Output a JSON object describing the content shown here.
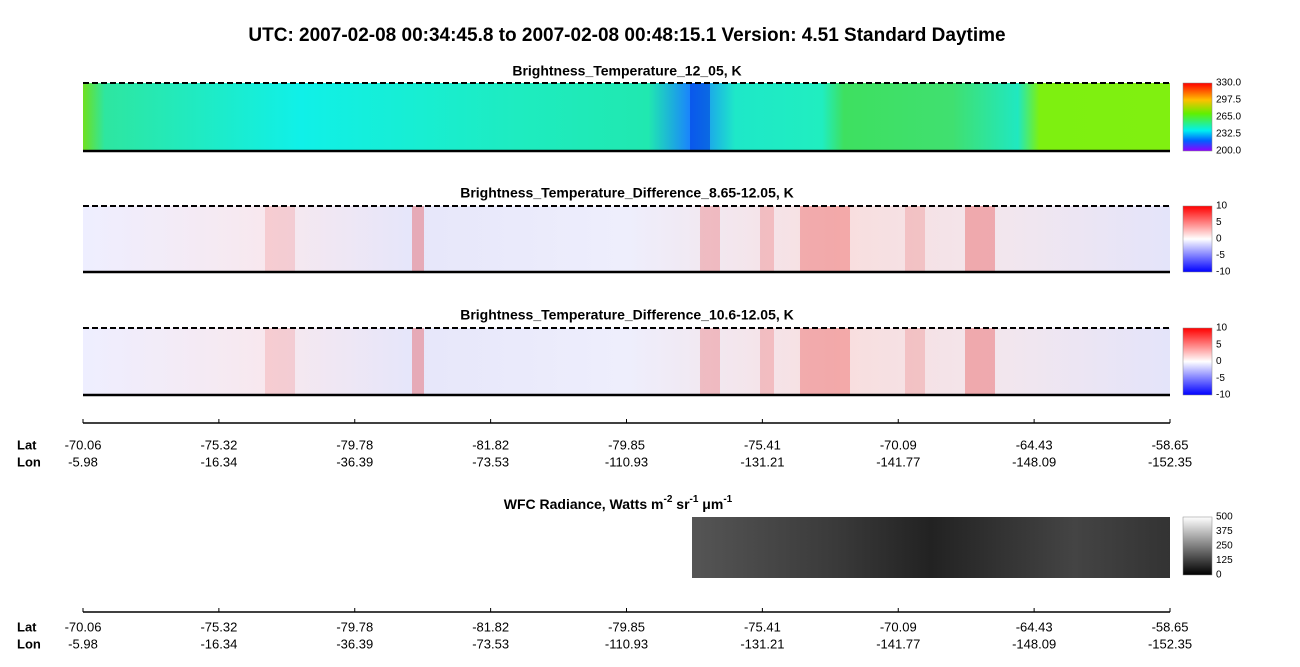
{
  "header": {
    "title": "UTC:  2007-02-08   00:34:45.8  to  2007-02-08   00:48:15.1    Version: 4.51  Standard Daytime"
  },
  "panels": [
    {
      "title": "Brightness_Temperature_12_05, K",
      "colorbar": [
        "330.0",
        "297.5",
        "265.0",
        "232.5",
        "200.0"
      ]
    },
    {
      "title": "Brightness_Temperature_Difference_8.65-12.05, K",
      "colorbar": [
        "10",
        "5",
        "0",
        "-5",
        "-10"
      ]
    },
    {
      "title": "Brightness_Temperature_Difference_10.6-12.05, K",
      "colorbar": [
        "10",
        "5",
        "0",
        "-5",
        "-10"
      ]
    }
  ],
  "axis": {
    "lat_label": "Lat",
    "lon_label": "Lon",
    "lat": [
      "-70.06",
      "-75.32",
      "-79.78",
      "-81.82",
      "-79.85",
      "-75.41",
      "-70.09",
      "-64.43",
      "-58.65"
    ],
    "lon": [
      "-5.98",
      "-16.34",
      "-36.39",
      "-73.53",
      "-110.93",
      "-131.21",
      "-141.77",
      "-148.09",
      "-152.35"
    ]
  },
  "wfc": {
    "title_parts": [
      "WFC Radiance, Watts m",
      "-2",
      " sr",
      "-1",
      " μm",
      "-1"
    ],
    "colorbar": [
      "500",
      "375",
      "250",
      "125",
      "0"
    ]
  }
}
